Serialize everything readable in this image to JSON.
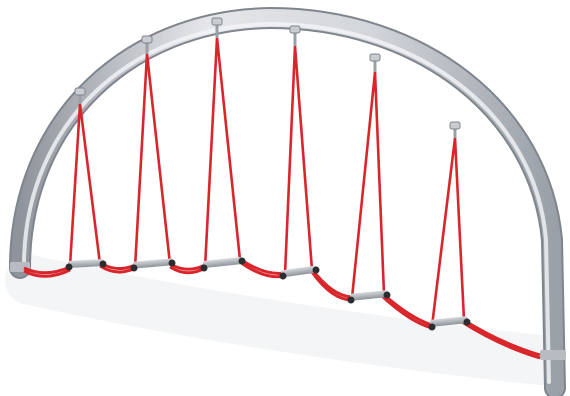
{
  "image": {
    "subject": "arched-rope-swing-frame",
    "colors": {
      "background": "#ffffff",
      "arch_light": "#e6e7ea",
      "arch_mid": "#c3c6cc",
      "arch_dark": "#8f949c",
      "rope": "#d8262b",
      "seat": "#a9adb4",
      "seat_end": "#2b2d31",
      "shadow": "#eceef1"
    },
    "swing_count": 6
  }
}
